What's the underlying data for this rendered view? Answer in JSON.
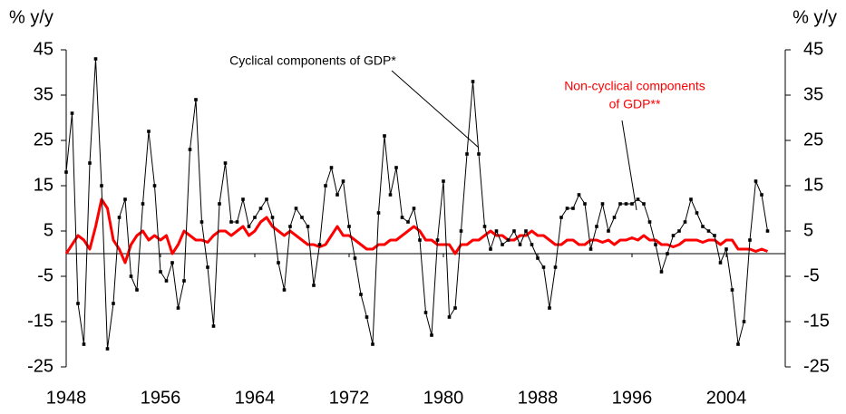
{
  "chart_data": {
    "type": "line",
    "y_label": "% y/y",
    "y2_label": "% y/y",
    "annotations": [
      {
        "lines": [
          "Cyclical components of GDP*"
        ],
        "color": "#000000"
      },
      {
        "lines": [
          "Non-cyclical components",
          "of GDP**"
        ],
        "color": "#ff0000"
      }
    ],
    "xlim": [
      1948,
      2009
    ],
    "xticks": [
      1948,
      1956,
      1964,
      1972,
      1980,
      1988,
      1996,
      2004
    ],
    "ylim": [
      -25,
      45
    ],
    "yticks": [
      45,
      35,
      25,
      15,
      5,
      -5,
      -15,
      -25
    ],
    "y2lim": [
      -25,
      45
    ],
    "y2ticks": [
      45,
      35,
      25,
      15,
      5,
      -5,
      -15,
      -25
    ],
    "x": [
      1948,
      1948.5,
      1949,
      1949.5,
      1950,
      1950.5,
      1951,
      1951.5,
      1952,
      1952.5,
      1953,
      1953.5,
      1954,
      1954.5,
      1955,
      1955.5,
      1956,
      1956.5,
      1957,
      1957.5,
      1958,
      1958.5,
      1959,
      1959.5,
      1960,
      1960.5,
      1961,
      1961.5,
      1962,
      1962.5,
      1963,
      1963.5,
      1964,
      1964.5,
      1965,
      1965.5,
      1966,
      1966.5,
      1967,
      1967.5,
      1968,
      1968.5,
      1969,
      1969.5,
      1970,
      1970.5,
      1971,
      1971.5,
      1972,
      1972.5,
      1973,
      1973.5,
      1974,
      1974.5,
      1975,
      1975.5,
      1976,
      1976.5,
      1977,
      1977.5,
      1978,
      1978.5,
      1979,
      1979.5,
      1980,
      1980.5,
      1981,
      1981.5,
      1982,
      1982.5,
      1983,
      1983.5,
      1984,
      1984.5,
      1985,
      1985.5,
      1986,
      1986.5,
      1987,
      1987.5,
      1988,
      1988.5,
      1989,
      1989.5,
      1990,
      1990.5,
      1991,
      1991.5,
      1992,
      1992.5,
      1993,
      1993.5,
      1994,
      1994.5,
      1995,
      1995.5,
      1996,
      1996.5,
      1997,
      1997.5,
      1998,
      1998.5,
      1999,
      1999.5,
      2000,
      2000.5,
      2001,
      2001.5,
      2002,
      2002.5,
      2003,
      2003.5,
      2004,
      2004.5,
      2005,
      2005.5,
      2006,
      2006.5,
      2007,
      2007.5
    ],
    "series": [
      {
        "color": "#000000",
        "markers": true,
        "values": [
          18,
          31,
          -11,
          -20,
          20,
          43,
          15,
          -21,
          -11,
          8,
          12,
          -5,
          -8,
          11,
          27,
          15,
          -4,
          -6,
          -2,
          -12,
          -6,
          23,
          34,
          7,
          -3,
          -16,
          11,
          20,
          7,
          7,
          12,
          6,
          8,
          10,
          12,
          8,
          -2,
          -8,
          6,
          10,
          8,
          6,
          -7,
          2,
          15,
          19,
          13,
          16,
          6,
          -1,
          -9,
          -14,
          -20,
          9,
          26,
          13,
          19,
          8,
          7,
          10,
          3,
          -13,
          -18,
          3,
          16,
          -14,
          -12,
          5,
          22,
          38,
          22,
          6,
          1,
          5,
          2,
          3,
          5,
          2,
          5,
          2,
          -1,
          -3,
          -12,
          -3,
          8,
          10,
          10,
          13,
          11,
          1,
          6,
          11,
          5,
          8,
          11,
          11,
          11,
          12,
          11,
          7,
          2,
          -4,
          0,
          4,
          5,
          7,
          12,
          9,
          6,
          5,
          4,
          -2,
          1,
          -8,
          -20,
          -15,
          3,
          16,
          13,
          5
        ]
      },
      {
        "color": "#ff0000",
        "markers": false,
        "values": [
          0,
          2,
          4,
          3,
          1,
          6,
          12,
          10,
          3,
          1,
          -2,
          2,
          4,
          5,
          3,
          4,
          3,
          4,
          0,
          2,
          5,
          4,
          3,
          3,
          2.5,
          4,
          5,
          5,
          4,
          5,
          6,
          4,
          5,
          7,
          8,
          6,
          5,
          4,
          5,
          4,
          3,
          2,
          2,
          1.5,
          2,
          4,
          6,
          4,
          4,
          3,
          2,
          1,
          1,
          2,
          2,
          3,
          3,
          4,
          5,
          6,
          5,
          3,
          3,
          2,
          2,
          2,
          0,
          2,
          2,
          3,
          3,
          4,
          5,
          4,
          4,
          3,
          3,
          4,
          4,
          5,
          4,
          4,
          3,
          2,
          2,
          3,
          3,
          2,
          2,
          3,
          3,
          2.5,
          3,
          2,
          3,
          3,
          3.5,
          3,
          4,
          3,
          3,
          2,
          2,
          1.5,
          2,
          3,
          3,
          3,
          2.5,
          3,
          3,
          2,
          3,
          3,
          1,
          1,
          1,
          0.5,
          1,
          0.5
        ]
      }
    ]
  }
}
